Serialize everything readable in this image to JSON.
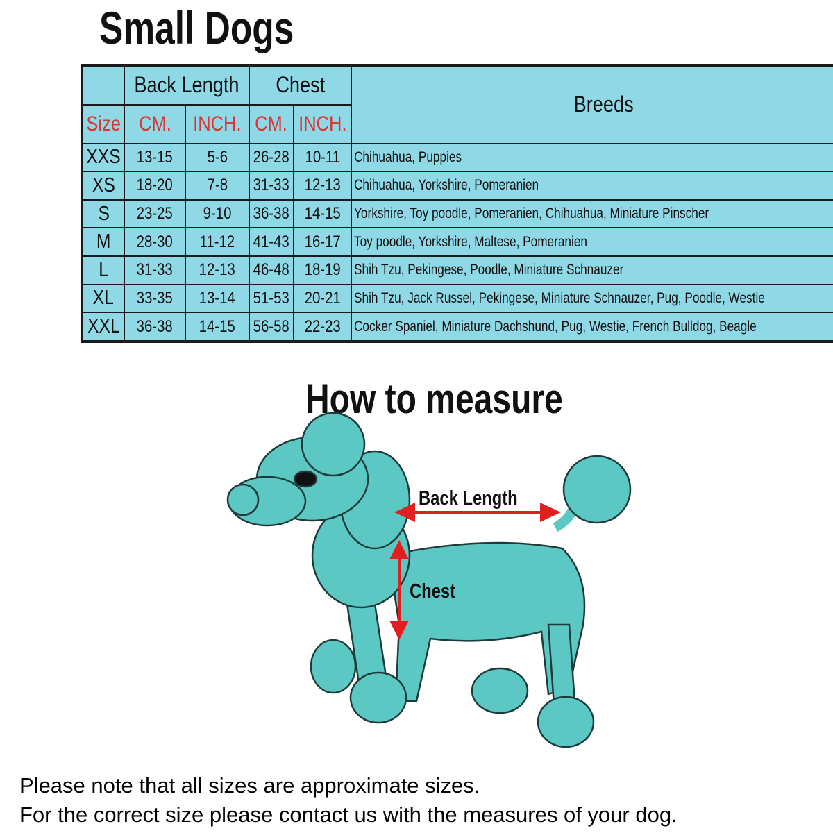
{
  "title": "Small Dogs",
  "table": {
    "group_headers": {
      "back_length": "Back Length",
      "chest": "Chest",
      "breeds": "Breeds"
    },
    "sub_headers": {
      "size": "Size",
      "back_cm": "CM.",
      "back_inch": "INCH.",
      "chest_cm": "CM.",
      "chest_inch": "INCH."
    },
    "rows": [
      {
        "size": "XXS",
        "back_cm": "13-15",
        "back_inch": "5-6",
        "chest_cm": "26-28",
        "chest_inch": "10-11",
        "breeds": "Chihuahua, Puppies"
      },
      {
        "size": "XS",
        "back_cm": "18-20",
        "back_inch": "7-8",
        "chest_cm": "31-33",
        "chest_inch": "12-13",
        "breeds": "Chihuahua, Yorkshire, Pomeranien"
      },
      {
        "size": "S",
        "back_cm": "23-25",
        "back_inch": "9-10",
        "chest_cm": "36-38",
        "chest_inch": "14-15",
        "breeds": "Yorkshire, Toy poodle, Pomeranien, Chihuahua, Miniature Pinscher"
      },
      {
        "size": "M",
        "back_cm": "28-30",
        "back_inch": "11-12",
        "chest_cm": "41-43",
        "chest_inch": "16-17",
        "breeds": "Toy poodle, Yorkshire, Maltese, Pomeranien"
      },
      {
        "size": "L",
        "back_cm": "31-33",
        "back_inch": "12-13",
        "chest_cm": "46-48",
        "chest_inch": "18-19",
        "breeds": "Shih Tzu, Pekingese, Poodle, Miniature Schnauzer"
      },
      {
        "size": "XL",
        "back_cm": "33-35",
        "back_inch": "13-14",
        "chest_cm": "51-53",
        "chest_inch": "20-21",
        "breeds": "Shih Tzu, Jack Russel, Pekingese, Miniature Schnauzer, Pug, Poodle, Westie"
      },
      {
        "size": "XXL",
        "back_cm": "36-38",
        "back_inch": "14-15",
        "chest_cm": "56-58",
        "chest_inch": "22-23",
        "breeds": "Cocker Spaniel, Miniature Dachshund, Pug, Westie, French Bulldog, Beagle"
      }
    ]
  },
  "measure": {
    "title": "How to measure",
    "back_length_label": "Back Length",
    "chest_label": "Chest",
    "dog_color": "#5cc8c4",
    "arrow_color": "#e02020"
  },
  "notes": [
    "Please note that all sizes are approximate sizes.",
    "For the correct size please contact us with the measures of your dog."
  ],
  "colors": {
    "table_bg": "#8fd8e6",
    "header_red": "#dd3333"
  }
}
